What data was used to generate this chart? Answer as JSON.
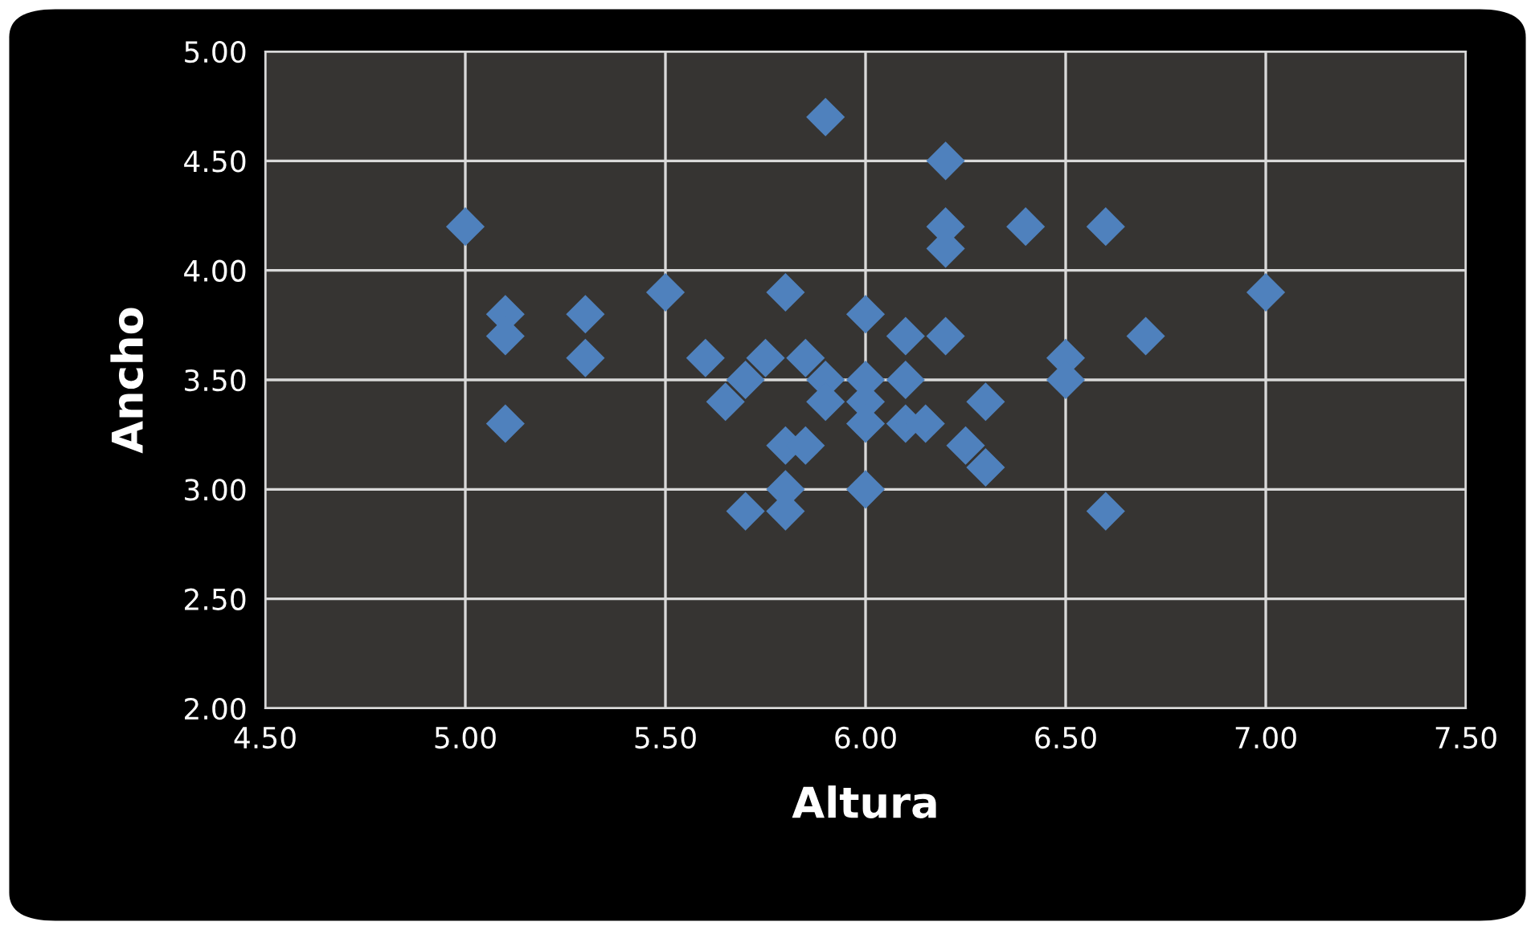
{
  "chart_data": {
    "type": "scatter",
    "xlabel": "Altura",
    "ylabel": "Ancho",
    "x": [
      5.0,
      5.1,
      5.1,
      5.1,
      5.3,
      5.3,
      5.5,
      5.6,
      5.65,
      5.7,
      5.7,
      5.75,
      5.8,
      5.8,
      5.8,
      5.8,
      5.85,
      5.85,
      5.9,
      5.9,
      5.9,
      6.0,
      6.0,
      6.0,
      6.0,
      6.0,
      6.1,
      6.1,
      6.1,
      6.15,
      6.2,
      6.2,
      6.2,
      6.2,
      6.25,
      6.3,
      6.3,
      6.4,
      6.5,
      6.5,
      6.6,
      6.6,
      6.7,
      7.0
    ],
    "series": [
      {
        "color": "#4f81bd",
        "values": [
          4.2,
          3.8,
          3.7,
          3.3,
          3.8,
          3.6,
          3.9,
          3.6,
          3.4,
          3.5,
          2.9,
          3.6,
          3.9,
          3.2,
          3.0,
          2.9,
          3.6,
          3.2,
          4.7,
          3.5,
          3.4,
          3.8,
          3.5,
          3.4,
          3.3,
          3.0,
          3.7,
          3.5,
          3.3,
          3.3,
          4.5,
          4.2,
          4.1,
          3.7,
          3.2,
          3.4,
          3.1,
          4.2,
          3.6,
          3.5,
          4.2,
          2.9,
          3.7,
          3.9
        ]
      }
    ],
    "xlim": [
      4.5,
      7.5
    ],
    "xticks": [
      {
        "value": 4.5,
        "label": "4.50"
      },
      {
        "value": 5.0,
        "label": "5.00"
      },
      {
        "value": 5.5,
        "label": "5.50"
      },
      {
        "value": 6.0,
        "label": "6.00"
      },
      {
        "value": 6.5,
        "label": "6.50"
      },
      {
        "value": 7.0,
        "label": "7.00"
      },
      {
        "value": 7.5,
        "label": "7.50"
      }
    ],
    "ylim": [
      2.0,
      5.0
    ],
    "yticks": [
      {
        "value": 2.0,
        "label": "2.00"
      },
      {
        "value": 2.5,
        "label": "2.50"
      },
      {
        "value": 3.0,
        "label": "3.00"
      },
      {
        "value": 3.5,
        "label": "3.50"
      },
      {
        "value": 4.0,
        "label": "4.00"
      },
      {
        "value": 4.5,
        "label": "4.50"
      },
      {
        "value": 5.0,
        "label": "5.00"
      }
    ],
    "grid": true,
    "marker": "diamond"
  }
}
